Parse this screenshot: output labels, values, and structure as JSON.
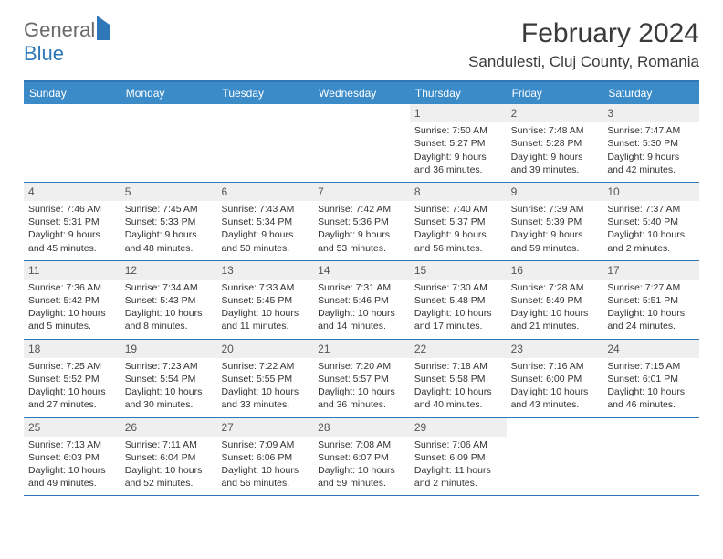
{
  "logo": {
    "general": "General",
    "blue": "Blue"
  },
  "title": "February 2024",
  "location": "Sandulesti, Cluj County, Romania",
  "dow": [
    "Sunday",
    "Monday",
    "Tuesday",
    "Wednesday",
    "Thursday",
    "Friday",
    "Saturday"
  ],
  "colors": {
    "header_bg": "#3b8bc8",
    "border": "#2e77b8",
    "daynum_bg": "#efefef"
  },
  "weeks": [
    [
      {
        "n": "",
        "sr": "",
        "ss": "",
        "dl": ""
      },
      {
        "n": "",
        "sr": "",
        "ss": "",
        "dl": ""
      },
      {
        "n": "",
        "sr": "",
        "ss": "",
        "dl": ""
      },
      {
        "n": "",
        "sr": "",
        "ss": "",
        "dl": ""
      },
      {
        "n": "1",
        "sr": "Sunrise: 7:50 AM",
        "ss": "Sunset: 5:27 PM",
        "dl": "Daylight: 9 hours and 36 minutes."
      },
      {
        "n": "2",
        "sr": "Sunrise: 7:48 AM",
        "ss": "Sunset: 5:28 PM",
        "dl": "Daylight: 9 hours and 39 minutes."
      },
      {
        "n": "3",
        "sr": "Sunrise: 7:47 AM",
        "ss": "Sunset: 5:30 PM",
        "dl": "Daylight: 9 hours and 42 minutes."
      }
    ],
    [
      {
        "n": "4",
        "sr": "Sunrise: 7:46 AM",
        "ss": "Sunset: 5:31 PM",
        "dl": "Daylight: 9 hours and 45 minutes."
      },
      {
        "n": "5",
        "sr": "Sunrise: 7:45 AM",
        "ss": "Sunset: 5:33 PM",
        "dl": "Daylight: 9 hours and 48 minutes."
      },
      {
        "n": "6",
        "sr": "Sunrise: 7:43 AM",
        "ss": "Sunset: 5:34 PM",
        "dl": "Daylight: 9 hours and 50 minutes."
      },
      {
        "n": "7",
        "sr": "Sunrise: 7:42 AM",
        "ss": "Sunset: 5:36 PM",
        "dl": "Daylight: 9 hours and 53 minutes."
      },
      {
        "n": "8",
        "sr": "Sunrise: 7:40 AM",
        "ss": "Sunset: 5:37 PM",
        "dl": "Daylight: 9 hours and 56 minutes."
      },
      {
        "n": "9",
        "sr": "Sunrise: 7:39 AM",
        "ss": "Sunset: 5:39 PM",
        "dl": "Daylight: 9 hours and 59 minutes."
      },
      {
        "n": "10",
        "sr": "Sunrise: 7:37 AM",
        "ss": "Sunset: 5:40 PM",
        "dl": "Daylight: 10 hours and 2 minutes."
      }
    ],
    [
      {
        "n": "11",
        "sr": "Sunrise: 7:36 AM",
        "ss": "Sunset: 5:42 PM",
        "dl": "Daylight: 10 hours and 5 minutes."
      },
      {
        "n": "12",
        "sr": "Sunrise: 7:34 AM",
        "ss": "Sunset: 5:43 PM",
        "dl": "Daylight: 10 hours and 8 minutes."
      },
      {
        "n": "13",
        "sr": "Sunrise: 7:33 AM",
        "ss": "Sunset: 5:45 PM",
        "dl": "Daylight: 10 hours and 11 minutes."
      },
      {
        "n": "14",
        "sr": "Sunrise: 7:31 AM",
        "ss": "Sunset: 5:46 PM",
        "dl": "Daylight: 10 hours and 14 minutes."
      },
      {
        "n": "15",
        "sr": "Sunrise: 7:30 AM",
        "ss": "Sunset: 5:48 PM",
        "dl": "Daylight: 10 hours and 17 minutes."
      },
      {
        "n": "16",
        "sr": "Sunrise: 7:28 AM",
        "ss": "Sunset: 5:49 PM",
        "dl": "Daylight: 10 hours and 21 minutes."
      },
      {
        "n": "17",
        "sr": "Sunrise: 7:27 AM",
        "ss": "Sunset: 5:51 PM",
        "dl": "Daylight: 10 hours and 24 minutes."
      }
    ],
    [
      {
        "n": "18",
        "sr": "Sunrise: 7:25 AM",
        "ss": "Sunset: 5:52 PM",
        "dl": "Daylight: 10 hours and 27 minutes."
      },
      {
        "n": "19",
        "sr": "Sunrise: 7:23 AM",
        "ss": "Sunset: 5:54 PM",
        "dl": "Daylight: 10 hours and 30 minutes."
      },
      {
        "n": "20",
        "sr": "Sunrise: 7:22 AM",
        "ss": "Sunset: 5:55 PM",
        "dl": "Daylight: 10 hours and 33 minutes."
      },
      {
        "n": "21",
        "sr": "Sunrise: 7:20 AM",
        "ss": "Sunset: 5:57 PM",
        "dl": "Daylight: 10 hours and 36 minutes."
      },
      {
        "n": "22",
        "sr": "Sunrise: 7:18 AM",
        "ss": "Sunset: 5:58 PM",
        "dl": "Daylight: 10 hours and 40 minutes."
      },
      {
        "n": "23",
        "sr": "Sunrise: 7:16 AM",
        "ss": "Sunset: 6:00 PM",
        "dl": "Daylight: 10 hours and 43 minutes."
      },
      {
        "n": "24",
        "sr": "Sunrise: 7:15 AM",
        "ss": "Sunset: 6:01 PM",
        "dl": "Daylight: 10 hours and 46 minutes."
      }
    ],
    [
      {
        "n": "25",
        "sr": "Sunrise: 7:13 AM",
        "ss": "Sunset: 6:03 PM",
        "dl": "Daylight: 10 hours and 49 minutes."
      },
      {
        "n": "26",
        "sr": "Sunrise: 7:11 AM",
        "ss": "Sunset: 6:04 PM",
        "dl": "Daylight: 10 hours and 52 minutes."
      },
      {
        "n": "27",
        "sr": "Sunrise: 7:09 AM",
        "ss": "Sunset: 6:06 PM",
        "dl": "Daylight: 10 hours and 56 minutes."
      },
      {
        "n": "28",
        "sr": "Sunrise: 7:08 AM",
        "ss": "Sunset: 6:07 PM",
        "dl": "Daylight: 10 hours and 59 minutes."
      },
      {
        "n": "29",
        "sr": "Sunrise: 7:06 AM",
        "ss": "Sunset: 6:09 PM",
        "dl": "Daylight: 11 hours and 2 minutes."
      },
      {
        "n": "",
        "sr": "",
        "ss": "",
        "dl": ""
      },
      {
        "n": "",
        "sr": "",
        "ss": "",
        "dl": ""
      }
    ]
  ]
}
